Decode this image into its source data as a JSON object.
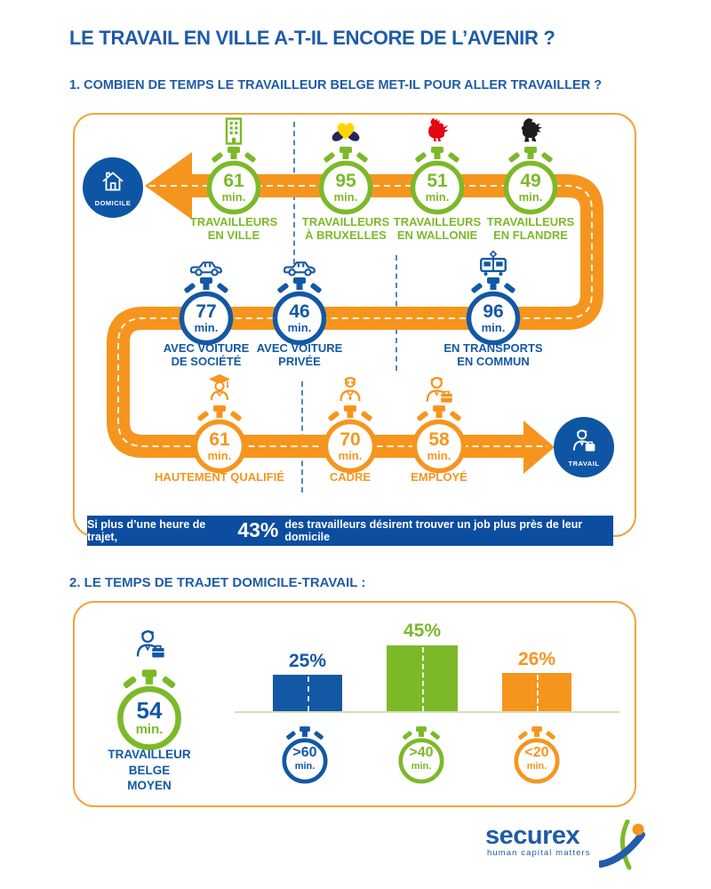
{
  "title": "LE TRAVAIL EN VILLE A-T-IL ENCORE DE L’AVENIR ?",
  "section1": {
    "heading": "1. COMBIEN DE TEMPS LE TRAVAILLEUR BELGE MET-IL POUR ALLER TRAVAILLER ?",
    "unit": "min.",
    "endpoints": {
      "home": "DOMICILE",
      "work": "TRAVAIL"
    },
    "regions": [
      {
        "value": "61",
        "label": "TRAVAILLEURS\nEN VILLE",
        "icon": "city-building"
      },
      {
        "value": "95",
        "label": "TRAVAILLEURS\nÀ BRUXELLES",
        "icon": "brussels-iris"
      },
      {
        "value": "51",
        "label": "TRAVAILLEURS\nEN WALLONIE",
        "icon": "walloon-rooster"
      },
      {
        "value": "49",
        "label": "TRAVAILLEURS\nEN FLANDRE",
        "icon": "flemish-lion"
      }
    ],
    "transport": [
      {
        "value": "77",
        "label": "AVEC VOITURE\nDE SOCIÉTÉ",
        "icon": "company-car"
      },
      {
        "value": "46",
        "label": "AVEC VOITURE\nPRIVÉE",
        "icon": "private-car"
      },
      {
        "value": "96",
        "label": "EN TRANSPORTS\nEN COMMUN",
        "icon": "tram"
      }
    ],
    "profiles": [
      {
        "value": "61",
        "label": "HAUTEMENT QUALIFIÉ",
        "icon": "graduate"
      },
      {
        "value": "70",
        "label": "CADRE",
        "icon": "manager"
      },
      {
        "value": "58",
        "label": "EMPLOYÉ",
        "icon": "employee"
      }
    ],
    "banner": {
      "prefix": "Si plus d’une heure de trajet,",
      "highlight": "43%",
      "suffix": "des travailleurs désirent trouver un job plus près de leur domicile"
    }
  },
  "section2": {
    "heading": "2. LE TEMPS DE TRAJET DOMICILE-TRAVAIL :",
    "average": {
      "value": "54",
      "unit": "min.",
      "label": "TRAVAILLEUR\nBELGE\nMOYEN"
    }
  },
  "chart_data": [
    {
      "type": "table",
      "title": "1. COMBIEN DE TEMPS LE TRAVAILLEUR BELGE MET-IL POUR ALLER TRAVAILLER ?",
      "columns": [
        "Catégorie",
        "Minutes"
      ],
      "rows": [
        [
          "TRAVAILLEURS EN VILLE",
          61
        ],
        [
          "TRAVAILLEURS À BRUXELLES",
          95
        ],
        [
          "TRAVAILLEURS EN WALLONIE",
          51
        ],
        [
          "TRAVAILLEURS EN FLANDRE",
          49
        ],
        [
          "AVEC VOITURE DE SOCIÉTÉ",
          77
        ],
        [
          "AVEC VOITURE PRIVÉE",
          46
        ],
        [
          "EN TRANSPORTS EN COMMUN",
          96
        ],
        [
          "HAUTEMENT QUALIFIÉ",
          61
        ],
        [
          "CADRE",
          70
        ],
        [
          "EMPLOYÉ",
          58
        ],
        [
          "TRAVAILLEUR BELGE MOYEN",
          54
        ]
      ],
      "annotation": "Si plus d’une heure de trajet, 43% des travailleurs désirent trouver un job plus près de leur domicile"
    },
    {
      "type": "bar",
      "title": "2. LE TEMPS DE TRAJET DOMICILE-TRAVAIL :",
      "categories": [
        ">60 min.",
        ">40 min.",
        "<20 min."
      ],
      "values": [
        25,
        45,
        26
      ],
      "value_labels": [
        "25%",
        "45%",
        "26%"
      ],
      "watch_values": [
        ">60",
        ">40",
        "<20"
      ],
      "unit": "min.",
      "bar_colors": [
        "#1358A5",
        "#7CB929",
        "#F6951E"
      ],
      "ylim": [
        0,
        50
      ],
      "grid": false,
      "legend": "none"
    }
  ],
  "logo": {
    "brand": "securex",
    "tagline": "human capital matters"
  },
  "colors": {
    "title_blue": "#1F5CA9",
    "blue": "#1358A5",
    "green": "#7CB929",
    "orange": "#F6951E",
    "banner_blue": "#0C4DA0",
    "panel_border": "#F0A43C",
    "rooster_red": "#E30613",
    "lion_black": "#1D1D1B",
    "iris_yellow": "#FFD500",
    "iris_blue": "#29235C"
  }
}
